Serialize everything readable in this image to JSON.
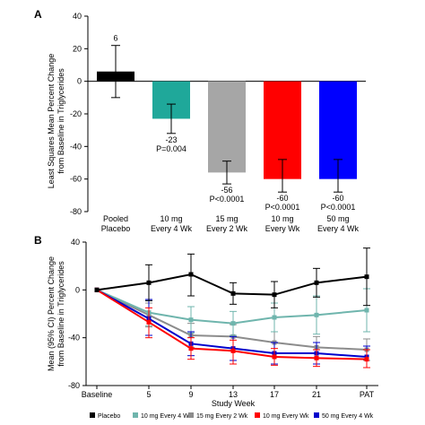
{
  "chart_data": [
    {
      "panel_label": "A",
      "type": "bar",
      "ylabel": "Least Squares Mean Percent Change from Baseline in Triglycerides",
      "ylim": [
        -80,
        40
      ],
      "yticks": [
        40,
        20,
        0,
        -20,
        -40,
        -60,
        -80
      ],
      "ytick_labels": [
        "40",
        "20",
        "0",
        "-20",
        "-40",
        "-60",
        "-80"
      ],
      "categories": [
        {
          "line1": "Pooled",
          "line2": "Placebo"
        },
        {
          "line1": "10 mg",
          "line2": "Every 4 Wk"
        },
        {
          "line1": "15 mg",
          "line2": "Every 2 Wk"
        },
        {
          "line1": "10 mg",
          "line2": "Every Wk"
        },
        {
          "line1": "50 mg",
          "line2": "Every 4 Wk"
        }
      ],
      "values": [
        6,
        -23,
        -56,
        -60,
        -60
      ],
      "error_low": [
        -10,
        -32,
        -63,
        -68,
        -68
      ],
      "error_high": [
        22,
        -14,
        -49,
        -48,
        -48
      ],
      "value_labels": [
        "6",
        "-23",
        "-56",
        "-60",
        "-60"
      ],
      "p_labels": [
        "",
        "P=0.004",
        "P<0.0001",
        "P<0.0001",
        "P<0.0001"
      ],
      "colors": [
        "#000000",
        "#1fa89a",
        "#a6a6a6",
        "#ff0000",
        "#0000ff"
      ]
    },
    {
      "panel_label": "B",
      "type": "line",
      "xlabel": "Study Week",
      "ylabel": "Mean (95% CI) Percent Change from Baseline in Triglycerides",
      "ylim": [
        -80,
        40
      ],
      "yticks": [
        40,
        0,
        -40,
        -80
      ],
      "ytick_labels": [
        "40",
        "0",
        "-40",
        "-80"
      ],
      "x_labels": [
        "Baseline",
        "5",
        "9",
        "13",
        "17",
        "21",
        "PAT"
      ],
      "series": [
        {
          "name": "Placebo",
          "color": "#000000",
          "values": [
            0,
            6,
            13,
            -3,
            -4,
            6,
            11
          ],
          "err_high": [
            0,
            21,
            30,
            6,
            7,
            18,
            35
          ],
          "err_low": [
            0,
            -9,
            -5,
            -12,
            -15,
            -6,
            -13
          ]
        },
        {
          "name": "10 mg Every 4 Wk",
          "color": "#6fb5ad",
          "values": [
            0,
            -19,
            -25,
            -28,
            -23,
            -21,
            -17
          ],
          "err_high": [
            0,
            -9,
            -14,
            -18,
            -11,
            -5,
            1
          ],
          "err_low": [
            0,
            -30,
            -36,
            -38,
            -35,
            -37,
            -35
          ]
        },
        {
          "name": "15 mg  Every 2 Wk",
          "color": "#8c8c8c",
          "values": [
            0,
            -21,
            -38,
            -39,
            -44,
            -48,
            -50
          ],
          "err_high": [
            0,
            -11,
            -28,
            -29,
            -35,
            -39,
            -41
          ],
          "err_low": [
            0,
            -31,
            -48,
            -49,
            -53,
            -57,
            -59
          ]
        },
        {
          "name": "10 mg Every Wk",
          "color": "#ff0000",
          "values": [
            0,
            -27,
            -49,
            -51,
            -56,
            -57,
            -58
          ],
          "err_high": [
            0,
            -15,
            -40,
            -42,
            -49,
            -50,
            -50
          ],
          "err_low": [
            0,
            -40,
            -58,
            -62,
            -63,
            -64,
            -65
          ]
        },
        {
          "name": "50 mg  Every 4 Wk",
          "color": "#0000cc",
          "values": [
            0,
            -24,
            -45,
            -49,
            -53,
            -53,
            -56
          ],
          "err_high": [
            0,
            -8,
            -35,
            -39,
            -44,
            -44,
            -47
          ],
          "err_low": [
            0,
            -38,
            -55,
            -59,
            -62,
            -62,
            -65
          ]
        }
      ],
      "legend_position": "bottom"
    }
  ]
}
